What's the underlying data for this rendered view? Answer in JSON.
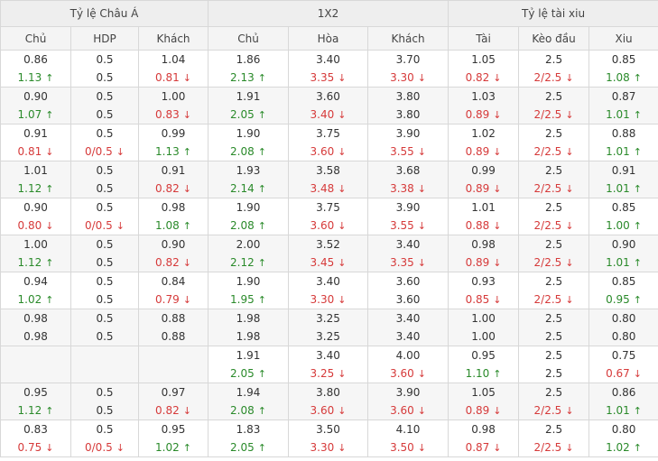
{
  "header": {
    "groups": [
      "Tỷ lệ Châu Á",
      "1X2",
      "Tỷ lệ tài xiu"
    ],
    "columns": [
      "Chủ",
      "HDP",
      "Khách",
      "Chủ",
      "Hòa",
      "Khách",
      "Tài",
      "Kèo đầu",
      "Xiu"
    ]
  },
  "rows": [
    [
      [
        "0.86",
        "1.13",
        "up"
      ],
      [
        "0.5",
        "0.5",
        ""
      ],
      [
        "1.04",
        "0.81",
        "down"
      ],
      [
        "1.86",
        "2.13",
        "up"
      ],
      [
        "3.40",
        "3.35",
        "down"
      ],
      [
        "3.70",
        "3.30",
        "down"
      ],
      [
        "1.05",
        "0.82",
        "down"
      ],
      [
        "2.5",
        "2/2.5",
        "down"
      ],
      [
        "0.85",
        "1.08",
        "up"
      ]
    ],
    [
      [
        "0.90",
        "1.07",
        "up"
      ],
      [
        "0.5",
        "0.5",
        ""
      ],
      [
        "1.00",
        "0.83",
        "down"
      ],
      [
        "1.91",
        "2.05",
        "up"
      ],
      [
        "3.60",
        "3.40",
        "down"
      ],
      [
        "3.80",
        "3.80",
        ""
      ],
      [
        "1.03",
        "0.89",
        "down"
      ],
      [
        "2.5",
        "2/2.5",
        "down"
      ],
      [
        "0.87",
        "1.01",
        "up"
      ]
    ],
    [
      [
        "0.91",
        "0.81",
        "down"
      ],
      [
        "0.5",
        "0/0.5",
        "down"
      ],
      [
        "0.99",
        "1.13",
        "up"
      ],
      [
        "1.90",
        "2.08",
        "up"
      ],
      [
        "3.75",
        "3.60",
        "down"
      ],
      [
        "3.90",
        "3.55",
        "down"
      ],
      [
        "1.02",
        "0.89",
        "down"
      ],
      [
        "2.5",
        "2/2.5",
        "down"
      ],
      [
        "0.88",
        "1.01",
        "up"
      ]
    ],
    [
      [
        "1.01",
        "1.12",
        "up"
      ],
      [
        "0.5",
        "0.5",
        ""
      ],
      [
        "0.91",
        "0.82",
        "down"
      ],
      [
        "1.93",
        "2.14",
        "up"
      ],
      [
        "3.58",
        "3.48",
        "down"
      ],
      [
        "3.68",
        "3.38",
        "down"
      ],
      [
        "0.99",
        "0.89",
        "down"
      ],
      [
        "2.5",
        "2/2.5",
        "down"
      ],
      [
        "0.91",
        "1.01",
        "up"
      ]
    ],
    [
      [
        "0.90",
        "0.80",
        "down"
      ],
      [
        "0.5",
        "0/0.5",
        "down"
      ],
      [
        "0.98",
        "1.08",
        "up"
      ],
      [
        "1.90",
        "2.08",
        "up"
      ],
      [
        "3.75",
        "3.60",
        "down"
      ],
      [
        "3.90",
        "3.55",
        "down"
      ],
      [
        "1.01",
        "0.88",
        "down"
      ],
      [
        "2.5",
        "2/2.5",
        "down"
      ],
      [
        "0.85",
        "1.00",
        "up"
      ]
    ],
    [
      [
        "1.00",
        "1.12",
        "up"
      ],
      [
        "0.5",
        "0.5",
        ""
      ],
      [
        "0.90",
        "0.82",
        "down"
      ],
      [
        "2.00",
        "2.12",
        "up"
      ],
      [
        "3.52",
        "3.45",
        "down"
      ],
      [
        "3.40",
        "3.35",
        "down"
      ],
      [
        "0.98",
        "0.89",
        "down"
      ],
      [
        "2.5",
        "2/2.5",
        "down"
      ],
      [
        "0.90",
        "1.01",
        "up"
      ]
    ],
    [
      [
        "0.94",
        "1.02",
        "up"
      ],
      [
        "0.5",
        "0.5",
        ""
      ],
      [
        "0.84",
        "0.79",
        "down"
      ],
      [
        "1.90",
        "1.95",
        "up"
      ],
      [
        "3.40",
        "3.30",
        "down"
      ],
      [
        "3.60",
        "3.60",
        ""
      ],
      [
        "0.93",
        "0.85",
        "down"
      ],
      [
        "2.5",
        "2/2.5",
        "down"
      ],
      [
        "0.85",
        "0.95",
        "up"
      ]
    ],
    [
      [
        "0.98",
        "0.98",
        ""
      ],
      [
        "0.5",
        "0.5",
        ""
      ],
      [
        "0.88",
        "0.88",
        ""
      ],
      [
        "1.98",
        "1.98",
        ""
      ],
      [
        "3.25",
        "3.25",
        ""
      ],
      [
        "3.40",
        "3.40",
        ""
      ],
      [
        "1.00",
        "1.00",
        ""
      ],
      [
        "2.5",
        "2.5",
        ""
      ],
      [
        "0.80",
        "0.80",
        ""
      ]
    ],
    [
      [
        "",
        "",
        ""
      ],
      [
        "",
        "",
        ""
      ],
      [
        "",
        "",
        ""
      ],
      [
        "1.91",
        "2.05",
        "up"
      ],
      [
        "3.40",
        "3.25",
        "down"
      ],
      [
        "4.00",
        "3.60",
        "down"
      ],
      [
        "0.95",
        "1.10",
        "up"
      ],
      [
        "2.5",
        "2.5",
        ""
      ],
      [
        "0.75",
        "0.67",
        "down"
      ]
    ],
    [
      [
        "0.95",
        "1.12",
        "up"
      ],
      [
        "0.5",
        "0.5",
        ""
      ],
      [
        "0.97",
        "0.82",
        "down"
      ],
      [
        "1.94",
        "2.08",
        "up"
      ],
      [
        "3.80",
        "3.60",
        "down"
      ],
      [
        "3.90",
        "3.60",
        "down"
      ],
      [
        "1.05",
        "0.89",
        "down"
      ],
      [
        "2.5",
        "2/2.5",
        "down"
      ],
      [
        "0.86",
        "1.01",
        "up"
      ]
    ],
    [
      [
        "0.83",
        "0.75",
        "down"
      ],
      [
        "0.5",
        "0/0.5",
        "down"
      ],
      [
        "0.95",
        "1.02",
        "up"
      ],
      [
        "1.83",
        "2.05",
        "up"
      ],
      [
        "3.50",
        "3.30",
        "down"
      ],
      [
        "4.10",
        "3.50",
        "down"
      ],
      [
        "0.98",
        "0.87",
        "down"
      ],
      [
        "2.5",
        "2/2.5",
        "down"
      ],
      [
        "0.80",
        "1.02",
        "up"
      ]
    ]
  ]
}
